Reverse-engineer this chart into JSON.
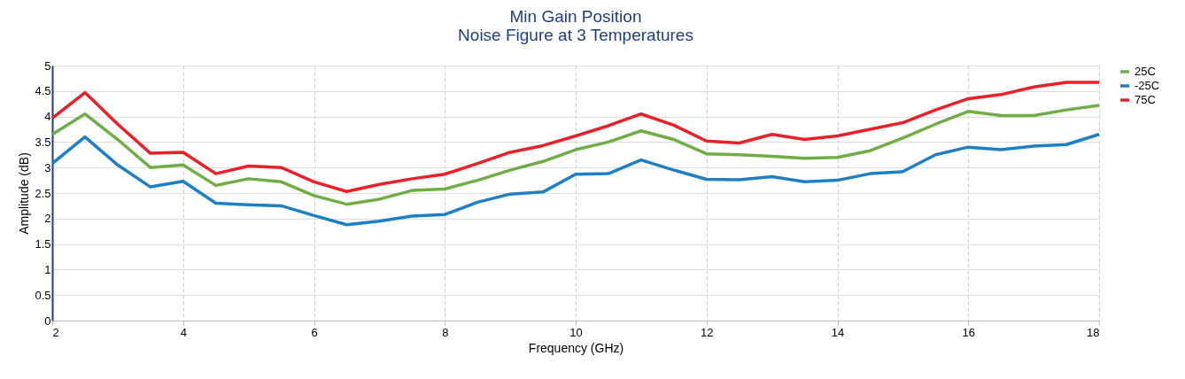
{
  "chart_data": {
    "type": "line",
    "title": [
      "Min Gain Position",
      "Noise Figure at 3 Temperatures"
    ],
    "xlabel": "Frequency (GHz)",
    "ylabel": "Amplitude (dB)",
    "x": [
      2,
      2.5,
      3,
      3.5,
      4,
      4.5,
      5,
      5.5,
      6,
      6.5,
      7,
      7.5,
      8,
      8.5,
      9,
      9.5,
      10,
      10.5,
      11,
      11.5,
      12,
      12.5,
      13,
      13.5,
      14,
      14.5,
      15,
      15.5,
      16,
      16.5,
      17,
      17.5,
      18
    ],
    "series": [
      {
        "name": "25C",
        "color": "#70ad47",
        "values": [
          3.65,
          4.05,
          3.55,
          3.0,
          3.05,
          2.65,
          2.78,
          2.72,
          2.45,
          2.28,
          2.38,
          2.55,
          2.58,
          2.75,
          2.95,
          3.12,
          3.35,
          3.5,
          3.72,
          3.55,
          3.27,
          3.25,
          3.22,
          3.18,
          3.2,
          3.33,
          3.58,
          3.85,
          4.1,
          4.02,
          4.02,
          4.13,
          4.22
        ]
      },
      {
        "name": "-25C",
        "color": "#1f7fc4",
        "values": [
          3.08,
          3.6,
          3.05,
          2.62,
          2.73,
          2.3,
          2.27,
          2.25,
          2.06,
          1.88,
          1.95,
          2.05,
          2.08,
          2.32,
          2.48,
          2.52,
          2.87,
          2.88,
          3.15,
          2.95,
          2.77,
          2.76,
          2.82,
          2.72,
          2.75,
          2.88,
          2.92,
          3.25,
          3.4,
          3.35,
          3.42,
          3.45,
          3.65
        ]
      },
      {
        "name": "75C",
        "color": "#e8202a",
        "values": [
          3.97,
          4.47,
          3.85,
          3.28,
          3.3,
          2.88,
          3.03,
          3.0,
          2.72,
          2.53,
          2.67,
          2.78,
          2.87,
          3.08,
          3.3,
          3.43,
          3.62,
          3.82,
          4.05,
          3.83,
          3.52,
          3.48,
          3.65,
          3.55,
          3.62,
          3.75,
          3.88,
          4.13,
          4.35,
          4.43,
          4.58,
          4.67,
          4.67
        ]
      }
    ],
    "xlim": [
      2,
      18
    ],
    "xticks": [
      2,
      4,
      6,
      8,
      10,
      12,
      14,
      16,
      18
    ],
    "ylim": [
      0,
      5
    ],
    "yticks": [
      0,
      0.5,
      1,
      1.5,
      2,
      2.5,
      3,
      3.5,
      4,
      4.5,
      5
    ],
    "grid": true,
    "legend": "right",
    "marker": "none",
    "line_style": "solid"
  }
}
